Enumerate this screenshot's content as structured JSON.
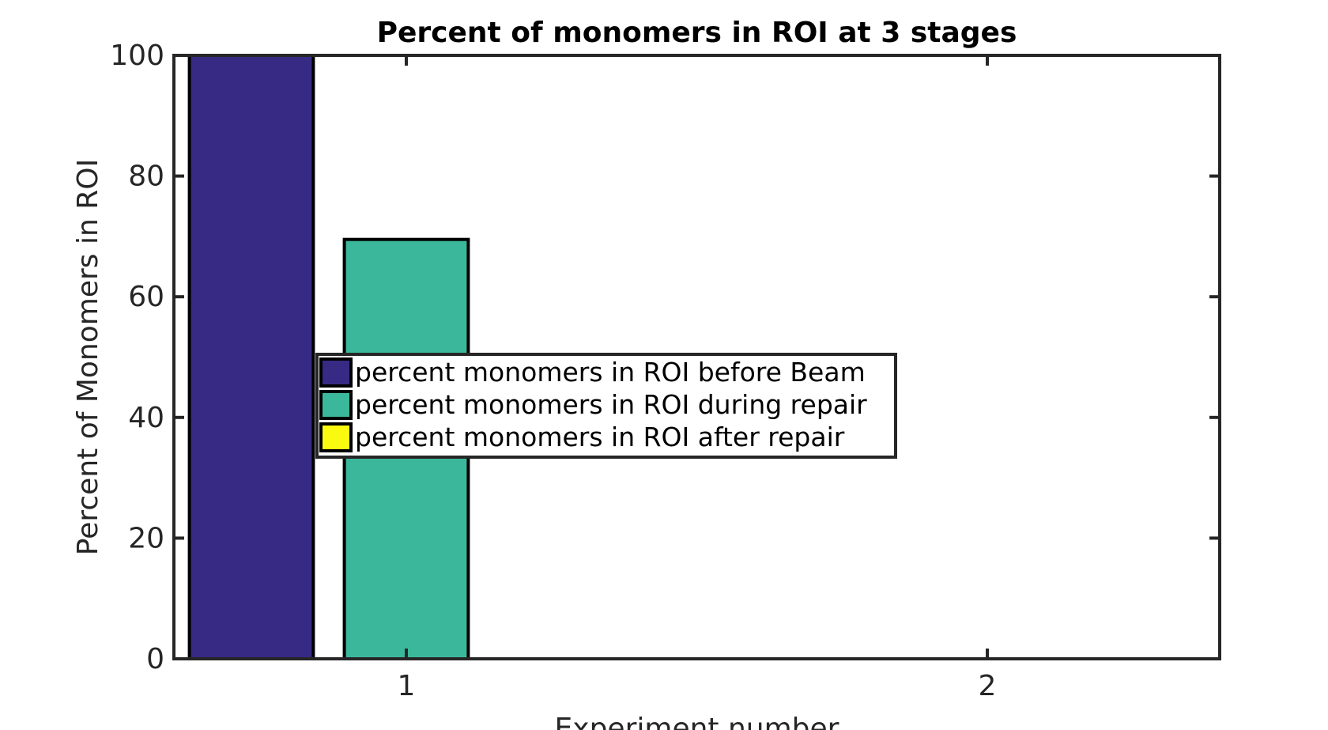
{
  "chart_data": {
    "type": "bar",
    "title": "Percent of monomers in ROI at 3 stages",
    "xlabel": "Experiment number",
    "ylabel": "Percent of Monomers in ROI",
    "categories": [
      "1",
      "2"
    ],
    "ylim": [
      0,
      100
    ],
    "yticks": [
      "0",
      "20",
      "40",
      "60",
      "80",
      "100"
    ],
    "grid": false,
    "legend_position": "center-left",
    "series": [
      {
        "name": "percent monomers in ROI before Beam",
        "color": "#372a84",
        "values": [
          100,
          0
        ]
      },
      {
        "name": "percent monomers in ROI during repair",
        "color": "#3bb89c",
        "values": [
          69.5,
          0
        ]
      },
      {
        "name": "percent monomers in ROI after repair",
        "color": "#f9fa0f",
        "values": [
          0,
          0
        ]
      }
    ]
  }
}
